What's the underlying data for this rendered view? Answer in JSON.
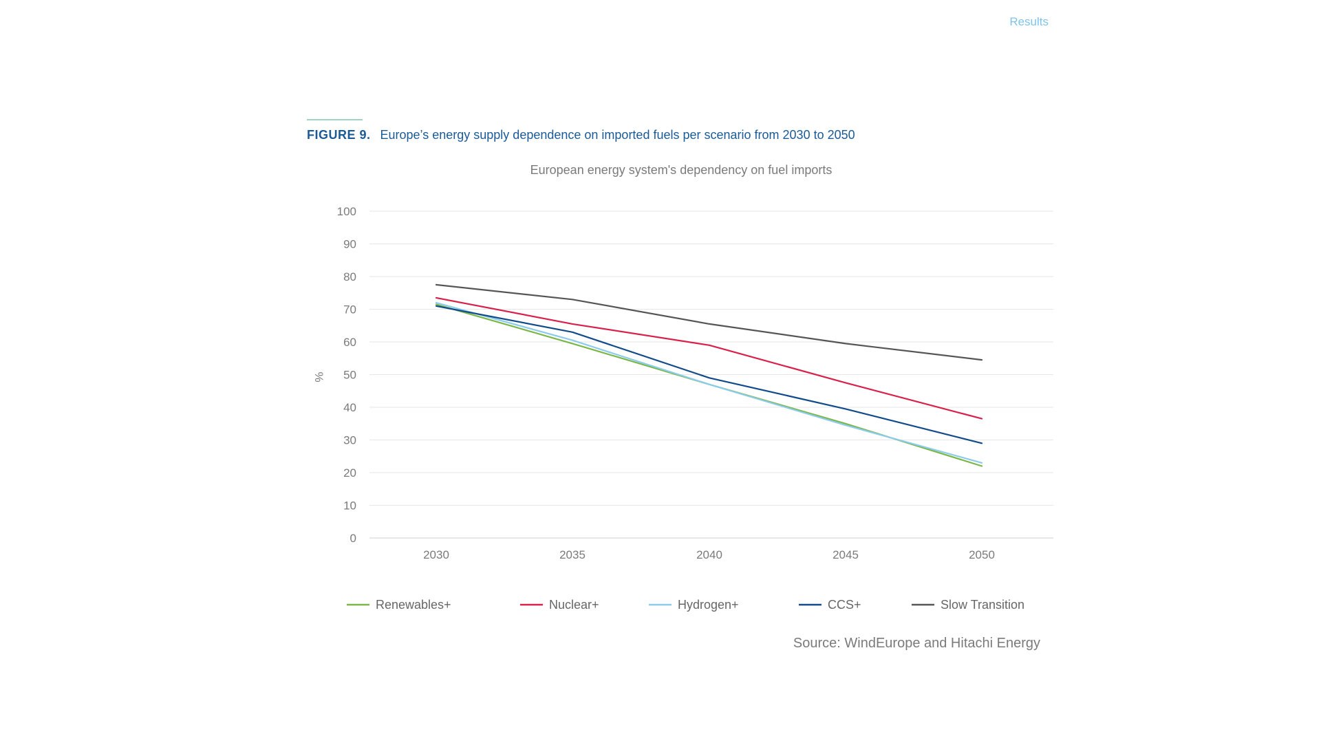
{
  "header": {
    "section_label": "Results"
  },
  "figure": {
    "number": "FIGURE 9.",
    "caption": "Europe’s energy supply dependence on imported fuels per scenario from 2030 to 2050",
    "source": "Source: WindEurope and Hitachi Energy"
  },
  "colors": {
    "caption": "#1a5a96",
    "rule": "#9fd3c3",
    "grid": "#e6e6e6",
    "axis_text": "#7a7a7a"
  },
  "chart_data": {
    "type": "line",
    "title": "European energy system's dependency on fuel imports",
    "xlabel": "",
    "ylabel": "%",
    "x": [
      "2030",
      "2035",
      "2040",
      "2045",
      "2050"
    ],
    "ylim": [
      0,
      100
    ],
    "yticks": [
      0,
      10,
      20,
      30,
      40,
      50,
      60,
      70,
      80,
      90,
      100
    ],
    "grid": true,
    "legend_position": "bottom",
    "series": [
      {
        "name": "Renewables+",
        "color": "#7ab648",
        "values": [
          71.5,
          59.5,
          47,
          35,
          22
        ]
      },
      {
        "name": "Nuclear+",
        "color": "#d9204a",
        "values": [
          73.5,
          65.5,
          59,
          47.5,
          36.5
        ]
      },
      {
        "name": "Hydrogen+",
        "color": "#8ccbea",
        "values": [
          72,
          60.5,
          47,
          34.5,
          23
        ]
      },
      {
        "name": "CCS+",
        "color": "#114b8a",
        "values": [
          71,
          63,
          49,
          39.5,
          29
        ]
      },
      {
        "name": "Slow Transition",
        "color": "#555555",
        "values": [
          77.5,
          73,
          65.5,
          59.5,
          54.5
        ]
      }
    ]
  }
}
